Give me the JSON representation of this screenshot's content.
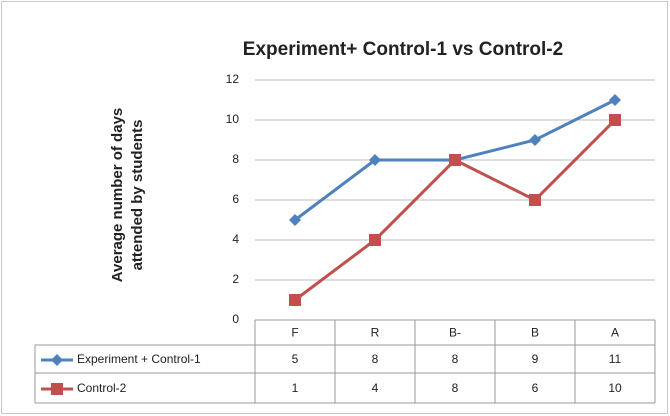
{
  "chart_data": {
    "type": "line",
    "title": "Experiment+ Control-1 vs Control-2",
    "ylabel": [
      "Average number of days",
      "attended by students"
    ],
    "categories": [
      "F",
      "R",
      "B-",
      "B",
      "A"
    ],
    "series": [
      {
        "name": "Experiment + Control-1",
        "color": "#4f81bd",
        "marker": "diamond",
        "values": [
          5,
          8,
          8,
          9,
          11
        ]
      },
      {
        "name": "Control-2",
        "color": "#c0504d",
        "marker": "square",
        "values": [
          1,
          4,
          8,
          6,
          10
        ]
      }
    ],
    "ylim": [
      0,
      12
    ],
    "yticks": [
      0,
      2,
      4,
      6,
      8,
      10,
      12
    ],
    "grid": true,
    "data_table": true
  }
}
